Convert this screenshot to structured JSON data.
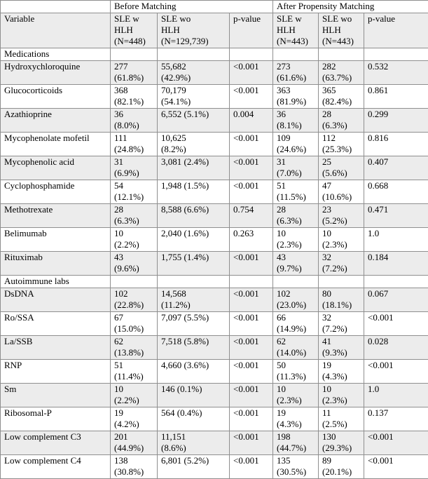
{
  "colors": {
    "row_shade": "#ececec",
    "border": "#8f8f8f",
    "text": "#000000",
    "background": "#ffffff"
  },
  "table": {
    "group_header": {
      "spacer": "",
      "before": "Before Matching",
      "after": "After Propensity Matching"
    },
    "columns": [
      "Variable",
      "SLE w\nHLH\n(N=448)",
      "SLE wo\nHLH\n(N=129,739)",
      "p-value",
      "SLE w\nHLH\n(N=443)",
      "SLE wo\nHLH\n(N=443)",
      "p-value"
    ],
    "sections": [
      {
        "title": "Medications",
        "rows": [
          {
            "variable": "Hydroxychloroquine",
            "cells": [
              {
                "t": "277\n(61.8%)"
              },
              {
                "t": "55,682\n(42.9%)"
              },
              {
                "t": "<0.001",
                "b": true
              },
              {
                "t": "273\n(61.6%)"
              },
              {
                "t": "282\n(63.7%)"
              },
              {
                "t": "0.532"
              }
            ]
          },
          {
            "variable": "Glucocorticoids",
            "cells": [
              {
                "t": "368\n(82.1%)"
              },
              {
                "t": "70,179\n(54.1%)"
              },
              {
                "t": "<0.001",
                "b": true
              },
              {
                "t": "363\n(81.9%)"
              },
              {
                "t": "365\n(82.4%)"
              },
              {
                "t": "0.861"
              }
            ]
          },
          {
            "variable": "Azathioprine",
            "cells": [
              {
                "t": "36\n(8.0%)"
              },
              {
                "t": "6,552 (5.1%)"
              },
              {
                "t": "0.004",
                "b": true
              },
              {
                "t": "36\n(8.1%)"
              },
              {
                "t": "28\n(6.3%)"
              },
              {
                "t": "0.299"
              }
            ]
          },
          {
            "variable": "Mycophenolate mofetil",
            "cells": [
              {
                "t": "111\n(24.8%)"
              },
              {
                "t": "10,625\n(8.2%)"
              },
              {
                "t": "<0.001",
                "b": true
              },
              {
                "t": "109\n(24.6%)"
              },
              {
                "t": "112\n(25.3%)"
              },
              {
                "t": "0.816"
              }
            ]
          },
          {
            "variable": "Mycophenolic acid",
            "cells": [
              {
                "t": "31\n(6.9%)"
              },
              {
                "t": "3,081 (2.4%)"
              },
              {
                "t": "<0.001",
                "b": true
              },
              {
                "t": "31\n(7.0%)"
              },
              {
                "t": "25\n(5.6%)"
              },
              {
                "t": "0.407"
              }
            ]
          },
          {
            "variable": "Cyclophosphamide",
            "cells": [
              {
                "t": "54\n(12.1%)"
              },
              {
                "t": "1,948 (1.5%)"
              },
              {
                "t": "<0.001",
                "b": true
              },
              {
                "t": "51\n(11.5%)"
              },
              {
                "t": "47\n(10.6%)"
              },
              {
                "t": "0.668"
              }
            ]
          },
          {
            "variable": "Methotrexate",
            "cells": [
              {
                "t": "28\n(6.3%)"
              },
              {
                "t": "8,588 (6.6%)"
              },
              {
                "t": "0.754"
              },
              {
                "t": "28\n(6.3%)"
              },
              {
                "t": "23\n(5.2%)"
              },
              {
                "t": "0.471"
              }
            ]
          },
          {
            "variable": "Belimumab",
            "cells": [
              {
                "t": "10\n(2.2%)"
              },
              {
                "t": "2,040 (1.6%)"
              },
              {
                "t": "0.263"
              },
              {
                "t": "10\n(2.3%)"
              },
              {
                "t": "10\n(2.3%)"
              },
              {
                "t": "1.0"
              }
            ]
          },
          {
            "variable": "Rituximab",
            "cells": [
              {
                "t": "43\n(9.6%)"
              },
              {
                "t": "1,755 (1.4%)"
              },
              {
                "t": "<0.001",
                "b": true
              },
              {
                "t": "43\n(9.7%)"
              },
              {
                "t": "32\n(7.2%)"
              },
              {
                "t": "0.184"
              }
            ]
          }
        ]
      },
      {
        "title": "Autoimmune labs",
        "rows": [
          {
            "variable": "DsDNA",
            "cells": [
              {
                "t": "102\n(22.8%)"
              },
              {
                "t": "14,568\n(11.2%)"
              },
              {
                "t": "<0.001",
                "b": true
              },
              {
                "t": "102\n(23.0%)"
              },
              {
                "t": "80\n(18.1%)"
              },
              {
                "t": "0.067"
              }
            ]
          },
          {
            "variable": "Ro/SSA",
            "cells": [
              {
                "t": "67\n(15.0%)"
              },
              {
                "t": "7,097 (5.5%)"
              },
              {
                "t": "<0.001",
                "b": true
              },
              {
                "t": "66\n(14.9%)"
              },
              {
                "t": "32\n(7.2%)"
              },
              {
                "t": "<0.001",
                "b": true
              }
            ]
          },
          {
            "variable": "La/SSB",
            "cells": [
              {
                "t": "62\n(13.8%)"
              },
              {
                "t": "7,518 (5.8%)"
              },
              {
                "t": "<0.001",
                "b": true
              },
              {
                "t": "62\n(14.0%)"
              },
              {
                "t": "41\n(9.3%)"
              },
              {
                "t": "0.028"
              }
            ]
          },
          {
            "variable": "RNP",
            "cells": [
              {
                "t": "51\n(11.4%)"
              },
              {
                "t": "4,660 (3.6%)"
              },
              {
                "t": "<0.001",
                "b": true
              },
              {
                "t": "50\n(11.3%)"
              },
              {
                "t": "19\n(4.3%)"
              },
              {
                "t": "<0.001",
                "b": true
              }
            ]
          },
          {
            "variable": "Sm",
            "cells": [
              {
                "t": "10\n(2.2%)"
              },
              {
                "t": "146 (0.1%)"
              },
              {
                "t": "<0.001",
                "b": true
              },
              {
                "t": "10\n(2.3%)"
              },
              {
                "t": "10\n(2.3%)"
              },
              {
                "t": "1.0"
              }
            ]
          },
          {
            "variable": "Ribosomal-P",
            "cells": [
              {
                "t": "19\n(4.2%)"
              },
              {
                "t": "564 (0.4%)"
              },
              {
                "t": "<0.001",
                "b": true
              },
              {
                "t": "19\n(4.3%)"
              },
              {
                "t": "11\n(2.5%)"
              },
              {
                "t": "0.137"
              }
            ]
          },
          {
            "variable": "Low complement C3",
            "cells": [
              {
                "t": "201\n(44.9%)"
              },
              {
                "t": "11,151\n(8.6%)"
              },
              {
                "t": "<0.001",
                "b": true
              },
              {
                "t": "198\n(44.7%)"
              },
              {
                "t": "130\n(29.3%)"
              },
              {
                "t": "<0.001",
                "b": true
              }
            ]
          },
          {
            "variable": "Low complement C4",
            "cells": [
              {
                "t": "138\n(30.8%)"
              },
              {
                "t": "6,801 (5.2%)"
              },
              {
                "t": "<0.001",
                "b": true
              },
              {
                "t": "135\n(30.5%)"
              },
              {
                "t": "89\n(20.1%)"
              },
              {
                "t": "<0.001",
                "b": true
              }
            ]
          }
        ]
      }
    ]
  }
}
